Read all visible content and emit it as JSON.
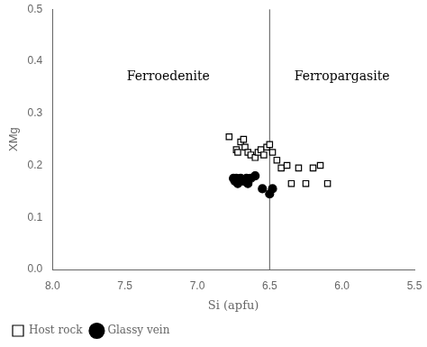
{
  "chart_data": {
    "type": "scatter",
    "xlabel": "Si (apfu)",
    "ylabel": "XMg",
    "series": [
      {
        "name": "Host rock",
        "color": "#000000",
        "marker": "open_square",
        "x": [
          6.78,
          6.73,
          6.72,
          6.7,
          6.68,
          6.67,
          6.65,
          6.63,
          6.6,
          6.58,
          6.56,
          6.54,
          6.52,
          6.5,
          6.48,
          6.45,
          6.42,
          6.38,
          6.35,
          6.3,
          6.25,
          6.2,
          6.15,
          6.1
        ],
        "values": [
          0.255,
          0.23,
          0.225,
          0.245,
          0.25,
          0.235,
          0.225,
          0.22,
          0.215,
          0.225,
          0.23,
          0.22,
          0.235,
          0.24,
          0.225,
          0.21,
          0.195,
          0.2,
          0.165,
          0.195,
          0.165,
          0.195,
          0.2,
          0.165
        ]
      },
      {
        "name": "Glassy vein",
        "color": "#000000",
        "marker": "circle",
        "x": [
          6.75,
          6.74,
          6.73,
          6.72,
          6.7,
          6.68,
          6.66,
          6.65,
          6.63,
          6.6,
          6.55,
          6.5,
          6.48
        ],
        "values": [
          0.175,
          0.17,
          0.175,
          0.165,
          0.175,
          0.17,
          0.175,
          0.165,
          0.175,
          0.18,
          0.155,
          0.145,
          0.155
        ]
      }
    ],
    "xlim": [
      8.0,
      5.5
    ],
    "ylim": [
      0,
      0.5
    ],
    "xticks": [
      {
        "value": 8.0,
        "label": "8.0"
      },
      {
        "value": 7.5,
        "label": "7.5"
      },
      {
        "value": 7.0,
        "label": "7.0"
      },
      {
        "value": 6.5,
        "label": "6.5"
      },
      {
        "value": 6.0,
        "label": "6.0"
      },
      {
        "value": 5.5,
        "label": "5.5"
      }
    ],
    "yticks": [
      {
        "value": 0,
        "label": "0.0"
      },
      0.1,
      0.2,
      0.3,
      0.4,
      0.5
    ],
    "grid": false,
    "legend": "bottom",
    "annotations": [
      {
        "text": "Ferroedenite",
        "x": 7.2,
        "y": 0.37,
        "color": "#000000"
      },
      {
        "text": "Ferropargasite",
        "x": 6.0,
        "y": 0.37,
        "color": "#000000"
      }
    ],
    "vlines": [
      {
        "x": 6.5,
        "color": "#555555"
      }
    ]
  }
}
